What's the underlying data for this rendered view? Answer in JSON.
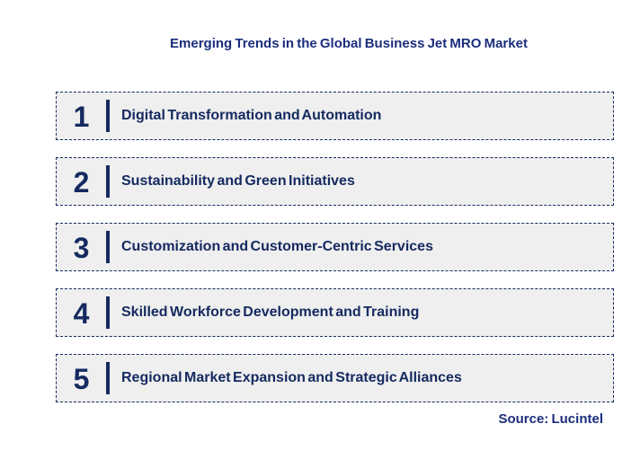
{
  "title": "Emerging Trends in the Global Business Jet MRO Market",
  "source": "Source: Lucintel",
  "colors": {
    "navy": "#152a60",
    "title_navy": "#1b2e7d",
    "box_bg": "#efefef",
    "page_bg": "#ffffff"
  },
  "trends": [
    {
      "number": "1",
      "label": "Digital Transformation and Automation"
    },
    {
      "number": "2",
      "label": "Sustainability and Green Initiatives"
    },
    {
      "number": "3",
      "label": "Customization and Customer-Centric Services"
    },
    {
      "number": "4",
      "label": "Skilled Workforce Development and Training"
    },
    {
      "number": "5",
      "label": "Regional Market Expansion and Strategic Alliances"
    }
  ]
}
